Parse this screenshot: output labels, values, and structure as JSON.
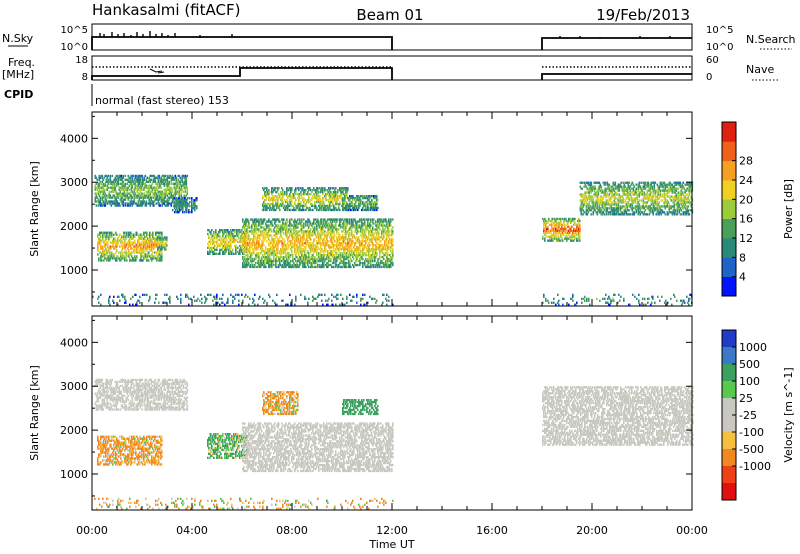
{
  "header": {
    "station": "Hankasalmi (fitACF)",
    "beam": "Beam 01",
    "date": "19/Feb/2013"
  },
  "strip_labels": {
    "nsky": "N.Sky",
    "nsearch": "N.Search",
    "freq": "Freq.",
    "freq_unit": "[MHz]",
    "nave": "Nave",
    "cpid": "CPID",
    "nsky_ticks": [
      "10^5",
      "10^0"
    ],
    "nsearch_ticks": [
      "10^5",
      "10^0"
    ],
    "freq_ticks": [
      "18",
      "8"
    ],
    "nave_ticks": [
      "60",
      "0"
    ],
    "cpid_text": "normal (fast stereo) 153"
  },
  "chart_data": [
    {
      "type": "heatmap",
      "name": "power",
      "xlabel": "Time UT",
      "ylabel": "Slant Range [km]",
      "xlim": [
        0,
        24
      ],
      "ylim": [
        180,
        4600
      ],
      "y_ticks": [
        1000,
        2000,
        3000,
        4000
      ],
      "x_ticks": [
        0,
        4,
        8,
        12,
        16,
        20,
        24
      ],
      "x_tick_labels": [
        "00:00",
        "04:00",
        "08:00",
        "12:00",
        "16:00",
        "20:00",
        "00:00"
      ],
      "data_gaps": [
        [
          12,
          18
        ]
      ],
      "colorbar": {
        "label": "Power [dB]",
        "ticks": [
          "4",
          "8",
          "12",
          "16",
          "20",
          "24",
          "28"
        ],
        "colors": [
          "#0014ff",
          "#1e64c8",
          "#2a8a7a",
          "#4aa05a",
          "#9ccc3a",
          "#f0d020",
          "#f5a020",
          "#f06018",
          "#e02010"
        ]
      },
      "echo_regions": [
        {
          "t0": 0.1,
          "t1": 3.8,
          "r0": 2450,
          "r1": 3150,
          "mean": 9
        },
        {
          "t0": 3.2,
          "t1": 4.2,
          "r0": 2300,
          "r1": 2650,
          "mean": 6
        },
        {
          "t0": 0.2,
          "t1": 2.8,
          "r0": 1200,
          "r1": 1850,
          "mean": 15
        },
        {
          "t0": 2.6,
          "t1": 3.0,
          "r0": 1450,
          "r1": 1750,
          "mean": 12
        },
        {
          "t0": 4.6,
          "t1": 6.2,
          "r0": 1350,
          "r1": 1900,
          "mean": 13
        },
        {
          "t0": 6.0,
          "t1": 12.0,
          "r0": 1050,
          "r1": 2150,
          "mean": 14
        },
        {
          "t0": 6.8,
          "t1": 10.2,
          "r0": 2350,
          "r1": 2850,
          "mean": 12
        },
        {
          "t0": 10.0,
          "t1": 11.4,
          "r0": 2350,
          "r1": 2700,
          "mean": 8
        },
        {
          "t0": 18.0,
          "t1": 19.5,
          "r0": 1650,
          "r1": 2150,
          "mean": 18
        },
        {
          "t0": 19.5,
          "t1": 24.0,
          "r0": 2250,
          "r1": 3000,
          "mean": 11
        },
        {
          "t0": 0.0,
          "t1": 12.0,
          "r0": 190,
          "r1": 450,
          "mean": 5
        },
        {
          "t0": 18.0,
          "t1": 24.0,
          "r0": 190,
          "r1": 450,
          "mean": 6
        }
      ]
    },
    {
      "type": "heatmap",
      "name": "velocity",
      "xlabel": "Time UT",
      "ylabel": "Slant Range [km]",
      "xlim": [
        0,
        24
      ],
      "ylim": [
        180,
        4600
      ],
      "y_ticks": [
        1000,
        2000,
        3000,
        4000
      ],
      "x_ticks": [
        0,
        4,
        8,
        12,
        16,
        20,
        24
      ],
      "x_tick_labels": [
        "00:00",
        "04:00",
        "08:00",
        "12:00",
        "16:00",
        "20:00",
        "00:00"
      ],
      "data_gaps": [
        [
          12,
          18
        ]
      ],
      "colorbar": {
        "label": "Velocity [m s^-1]",
        "ticks": [
          "1000",
          "500",
          "100",
          "25",
          "-25",
          "-100",
          "-500",
          "-1000"
        ],
        "colors": [
          "#1e3cc8",
          "#3a78c8",
          "#3ca060",
          "#58c850",
          "#c8c8c0",
          "#c8c8c0",
          "#f5c040",
          "#f08a20",
          "#f04018",
          "#e01010"
        ]
      },
      "echo_regions": [
        {
          "t0": 0.1,
          "t1": 3.8,
          "r0": 2450,
          "r1": 3150,
          "mean": 0
        },
        {
          "t0": 0.2,
          "t1": 2.8,
          "r0": 1200,
          "r1": 1850,
          "mean": -150
        },
        {
          "t0": 4.6,
          "t1": 6.2,
          "r0": 1350,
          "r1": 1900,
          "mean": 120
        },
        {
          "t0": 6.0,
          "t1": 12.0,
          "r0": 1050,
          "r1": 2150,
          "mean": 0
        },
        {
          "t0": 6.8,
          "t1": 8.2,
          "r0": 2350,
          "r1": 2850,
          "mean": -120
        },
        {
          "t0": 10.0,
          "t1": 11.4,
          "r0": 2350,
          "r1": 2700,
          "mean": 300
        },
        {
          "t0": 18.0,
          "t1": 24.0,
          "r0": 1650,
          "r1": 3000,
          "mean": 0
        },
        {
          "t0": 0.0,
          "t1": 12.0,
          "r0": 190,
          "r1": 450,
          "mean": -80
        }
      ]
    }
  ]
}
